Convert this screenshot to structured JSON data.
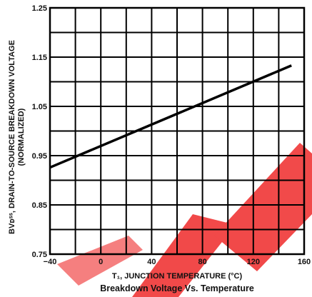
{
  "chart_data": {
    "type": "line",
    "title": "Breakdown Voltage Vs. Temperature",
    "xlabel": "T₁, JUNCTION TEMPERATURE (°C)",
    "ylabel_line1": "BVᴅˢˢ, DRAIN-TO-SOURCE BREAKDOWN VOLTAGE",
    "ylabel_line2": "(NORMALIZED)",
    "xlim": [
      -40,
      160
    ],
    "ylim": [
      0.75,
      1.25
    ],
    "x_ticks": [
      "−40",
      "0",
      "40",
      "80",
      "120",
      "160"
    ],
    "y_ticks": [
      "0.75",
      "0.85",
      "0.95",
      "1.05",
      "1.15",
      "1.25"
    ],
    "grid": true,
    "series": [
      {
        "x": [
          -40,
          150
        ],
        "y": [
          0.926,
          1.133
        ]
      }
    ]
  },
  "colors": {
    "line": "#000000",
    "grid": "#000000",
    "watermark": "#ee1111"
  }
}
